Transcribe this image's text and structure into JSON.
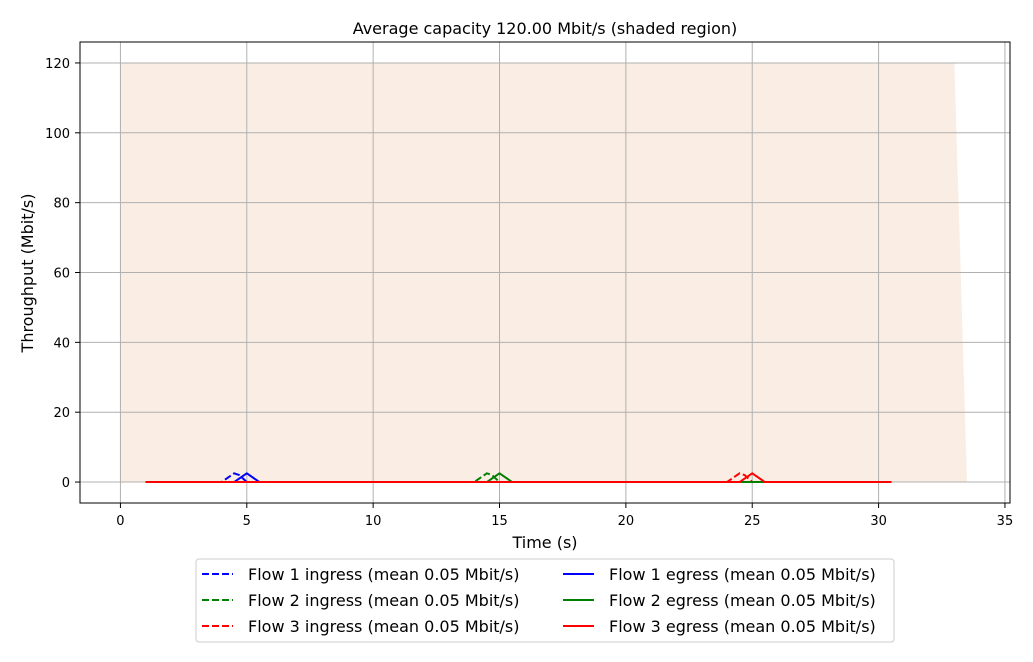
{
  "chart_data": {
    "type": "line",
    "title": "Average capacity 120.00 Mbit/s (shaded region)",
    "xlabel": "Time (s)",
    "ylabel": "Throughput (Mbit/s)",
    "xlim": [
      -1.6,
      35.2
    ],
    "ylim": [
      -6,
      126
    ],
    "xticks": [
      0,
      5,
      10,
      15,
      20,
      25,
      30,
      35
    ],
    "yticks": [
      0,
      20,
      40,
      60,
      80,
      100,
      120
    ],
    "grid": true,
    "legend_position": "bottom-center",
    "capacity": {
      "x": [
        0,
        33.0,
        33.5
      ],
      "y": [
        120,
        120,
        0
      ],
      "color": "#faeee4"
    },
    "series": [
      {
        "name": "Flow 1 ingress (mean 0.05 Mbit/s)",
        "color": "#0000ff",
        "dash": true,
        "x": [
          1.0,
          4.0,
          4.5,
          4.7,
          5.0,
          5.5,
          27.5,
          30.5
        ],
        "y": [
          0,
          0,
          2.5,
          2.0,
          0,
          0,
          0,
          0
        ]
      },
      {
        "name": "Flow 2 ingress (mean 0.05 Mbit/s)",
        "color": "#008000",
        "dash": true,
        "x": [
          1.0,
          14.0,
          14.5,
          14.7,
          15.0,
          15.5,
          30.5
        ],
        "y": [
          0,
          0,
          2.5,
          2.0,
          0,
          0,
          0
        ]
      },
      {
        "name": "Flow 3 ingress (mean 0.05 Mbit/s)",
        "color": "#ff0000",
        "dash": true,
        "x": [
          1.0,
          24.0,
          24.5,
          24.7,
          25.0,
          25.5,
          30.5
        ],
        "y": [
          0,
          0,
          2.5,
          2.0,
          0,
          0,
          0
        ]
      },
      {
        "name": "Flow 1 egress (mean 0.05 Mbit/s)",
        "color": "#0000ff",
        "dash": false,
        "x": [
          1.0,
          4.5,
          5.0,
          5.5,
          30.5
        ],
        "y": [
          0,
          0,
          2.5,
          0,
          0
        ]
      },
      {
        "name": "Flow 2 egress (mean 0.05 Mbit/s)",
        "color": "#008000",
        "dash": false,
        "x": [
          1.0,
          14.5,
          15.0,
          15.5,
          30.5
        ],
        "y": [
          0,
          0,
          2.5,
          0,
          0
        ]
      },
      {
        "name": "Flow 3 egress (mean 0.05 Mbit/s)",
        "color": "#ff0000",
        "dash": false,
        "x": [
          1.0,
          24.5,
          25.0,
          25.5,
          30.5
        ],
        "y": [
          0,
          0,
          2.5,
          0,
          0
        ]
      }
    ]
  }
}
